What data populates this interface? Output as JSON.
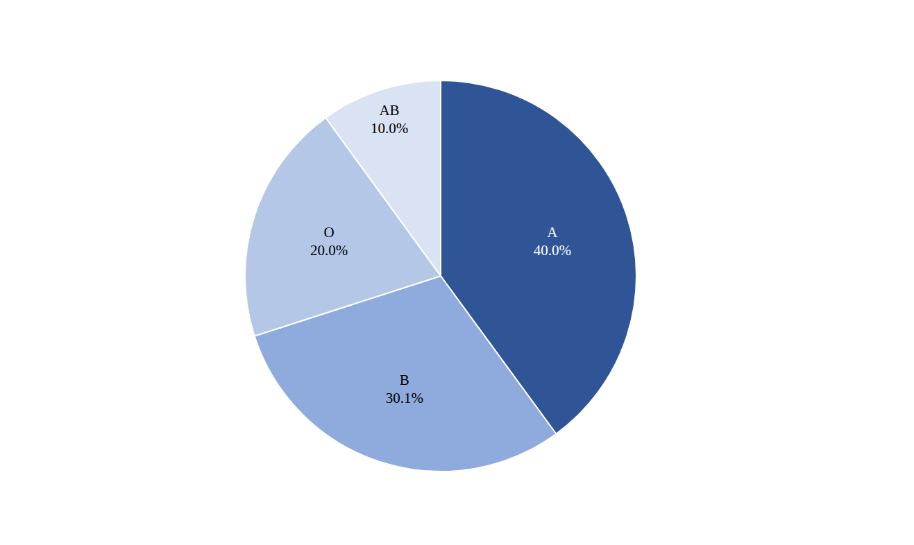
{
  "chart_data": {
    "type": "pie",
    "categories": [
      "A",
      "B",
      "O",
      "AB"
    ],
    "values": [
      40.0,
      30.1,
      20.0,
      10.0
    ],
    "value_labels": [
      "40.0%",
      "30.1%",
      "20.0%",
      "10.0%"
    ],
    "colors": [
      "#2f5597",
      "#8faadc",
      "#b4c7e7",
      "#dae3f3"
    ],
    "data_labels": true
  }
}
